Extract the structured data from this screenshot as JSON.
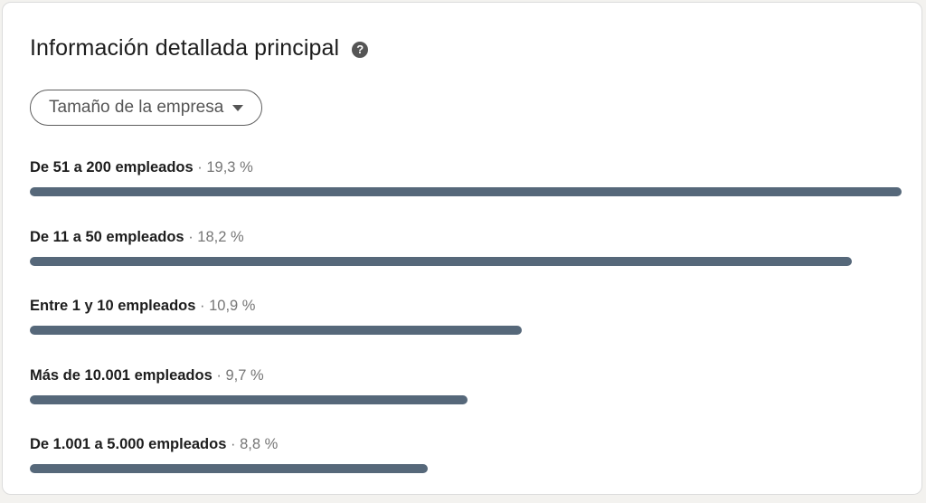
{
  "title": "Información detallada principal",
  "help_icon": "question-circle-icon",
  "dropdown": {
    "label": "Tamaño de la empresa",
    "icon": "caret-down-icon"
  },
  "bar_color": "#56687a",
  "separator": "·",
  "rows": [
    {
      "label": "De 51 a 200 empleados",
      "percent": "19,3 %",
      "value": 19.3
    },
    {
      "label": "De 11 a 50 empleados",
      "percent": "18,2 %",
      "value": 18.2
    },
    {
      "label": "Entre 1 y 10 empleados",
      "percent": "10,9 %",
      "value": 10.9
    },
    {
      "label": "Más de 10.001 empleados",
      "percent": "9,7 %",
      "value": 9.7
    },
    {
      "label": "De 1.001 a 5.000 empleados",
      "percent": "8,8 %",
      "value": 8.8
    }
  ]
}
